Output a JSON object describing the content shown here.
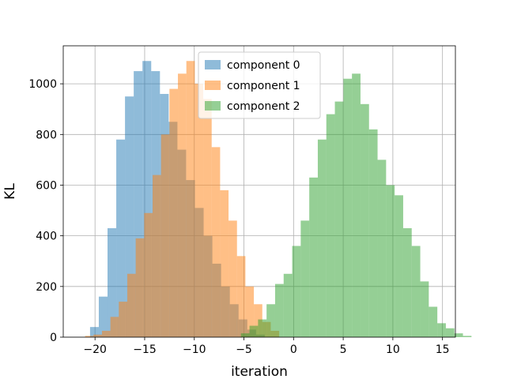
{
  "chart_data": {
    "type": "histogram",
    "xlabel": "iteration",
    "ylabel": "KL",
    "xlim": [
      -23.2,
      16.3
    ],
    "ylim": [
      0,
      1150
    ],
    "x_ticks": [
      -20,
      -15,
      -10,
      -5,
      0,
      5,
      10,
      15
    ],
    "x_tick_labels": [
      "−20",
      "−15",
      "−10",
      "−5",
      "0",
      "5",
      "10",
      "15"
    ],
    "y_ticks": [
      0,
      200,
      400,
      600,
      800,
      1000
    ],
    "y_tick_labels": [
      "0",
      "200",
      "400",
      "600",
      "800",
      "1000"
    ],
    "grid": true,
    "legend_position": "top-center",
    "alpha": 0.5,
    "series": [
      {
        "name": "component 0",
        "color": "#1f77b4",
        "bin_start": -20.5,
        "bin_width": 0.88,
        "counts": [
          40,
          160,
          430,
          780,
          950,
          1050,
          1090,
          1050,
          960,
          850,
          740,
          620,
          510,
          400,
          290,
          200,
          130,
          70,
          30,
          10
        ]
      },
      {
        "name": "component 1",
        "color": "#ff7f0e",
        "bin_start": -21.0,
        "bin_width": 0.85,
        "counts": [
          5,
          10,
          25,
          80,
          140,
          250,
          390,
          490,
          640,
          800,
          980,
          1040,
          1090,
          1000,
          940,
          750,
          580,
          460,
          320,
          200,
          130,
          60,
          25
        ]
      },
      {
        "name": "component 2",
        "color": "#2ca02c",
        "bin_start": -5.3,
        "bin_width": 0.86,
        "counts": [
          15,
          45,
          70,
          130,
          210,
          250,
          360,
          460,
          630,
          780,
          880,
          930,
          1020,
          1040,
          920,
          820,
          700,
          600,
          560,
          430,
          360,
          220,
          120,
          55,
          35,
          15,
          5
        ]
      }
    ]
  }
}
